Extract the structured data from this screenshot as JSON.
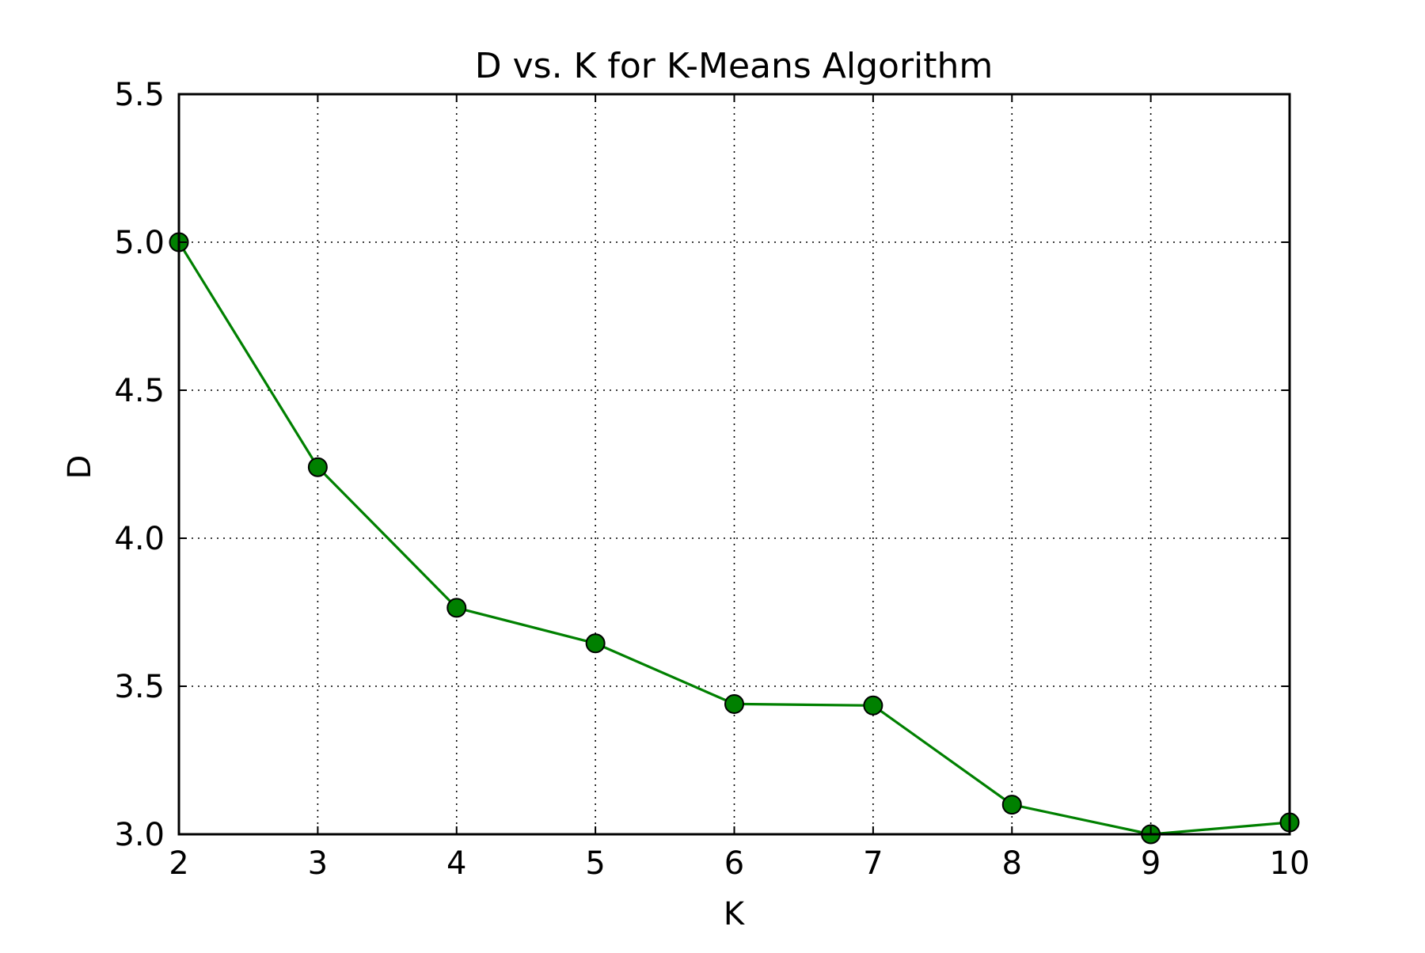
{
  "chart_data": {
    "type": "line",
    "title": "D vs. K for K-Means Algorithm",
    "xlabel": "K",
    "ylabel": "D",
    "xlim": [
      2,
      10
    ],
    "ylim": [
      3.0,
      5.5
    ],
    "x_ticks": [
      "2",
      "3",
      "4",
      "5",
      "6",
      "7",
      "8",
      "9",
      "10"
    ],
    "y_ticks": [
      "3.0",
      "3.5",
      "4.0",
      "4.5",
      "5.0",
      "5.5"
    ],
    "grid": true,
    "grid_style": "dotted",
    "series": [
      {
        "color": "#008000",
        "marker": "circle",
        "x": [
          2,
          3,
          4,
          5,
          6,
          7,
          8,
          9,
          10
        ],
        "y": [
          5.0,
          4.24,
          3.765,
          3.645,
          3.44,
          3.435,
          3.1,
          3.0,
          3.04
        ]
      }
    ]
  }
}
